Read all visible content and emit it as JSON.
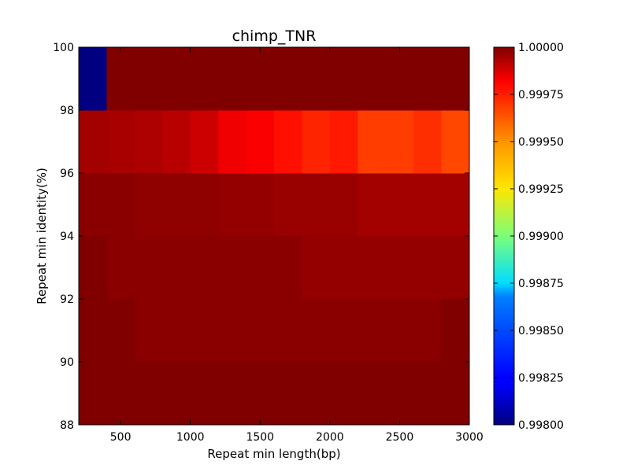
{
  "chart_data": {
    "type": "heatmap",
    "title": "chimp_TNR",
    "xlabel": "Repeat min length(bp)",
    "ylabel": "Repeat min identity(%)",
    "x_edges": [
      200,
      400,
      600,
      800,
      1000,
      1200,
      1400,
      1600,
      1800,
      2000,
      2200,
      2400,
      2600,
      2800,
      3000
    ],
    "y_edges": [
      88,
      90,
      92,
      94,
      96,
      98,
      100
    ],
    "xlim": [
      200,
      3000
    ],
    "ylim": [
      88,
      100
    ],
    "xticks": [
      500,
      1000,
      1500,
      2000,
      2500,
      3000
    ],
    "yticks": [
      88,
      90,
      92,
      94,
      96,
      98,
      100
    ],
    "colormap": "jet",
    "clim": [
      0.998,
      1.0
    ],
    "colorbar_ticks": [
      "0.99800",
      "0.99825",
      "0.99850",
      "0.99875",
      "0.99900",
      "0.99925",
      "0.99950",
      "0.99975",
      "1.00000"
    ],
    "rows_bottom_to_top": [
      [
        1.0,
        1.0,
        1.0,
        1.0,
        1.0,
        1.0,
        1.0,
        1.0,
        1.0,
        1.0,
        1.0,
        1.0,
        1.0,
        1.0
      ],
      [
        1.0,
        1.0,
        0.99998,
        0.99998,
        0.99998,
        0.99998,
        0.99998,
        0.99998,
        0.99998,
        0.99998,
        0.99998,
        0.99998,
        0.99998,
        1.0
      ],
      [
        1.0,
        0.99998,
        0.99998,
        0.99998,
        0.99998,
        0.99998,
        0.99998,
        0.99998,
        0.99996,
        0.99996,
        0.99996,
        0.99996,
        0.99996,
        0.99996
      ],
      [
        0.99998,
        0.99998,
        0.99997,
        0.99997,
        0.99997,
        0.99996,
        0.99996,
        0.99995,
        0.99995,
        0.99995,
        0.99993,
        0.99993,
        0.99993,
        0.99993
      ],
      [
        0.99993,
        0.99992,
        0.99991,
        0.99989,
        0.99985,
        0.99978,
        0.99976,
        0.99972,
        0.99968,
        0.9997,
        0.99963,
        0.99963,
        0.99966,
        0.99961
      ],
      [
        0.998,
        1.0,
        1.0,
        1.0,
        1.0,
        1.0,
        1.0,
        1.0,
        1.0,
        1.0,
        1.0,
        1.0,
        1.0,
        1.0
      ]
    ]
  }
}
